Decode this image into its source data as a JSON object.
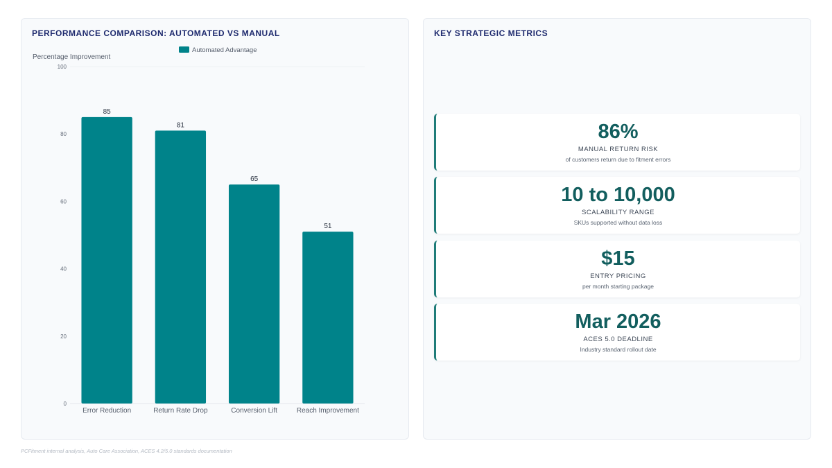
{
  "left_panel": {
    "title": "PERFORMANCE COMPARISON: AUTOMATED VS MANUAL"
  },
  "right_panel": {
    "title": "KEY STRATEGIC METRICS",
    "metrics": [
      {
        "value": "86%",
        "label": "MANUAL RETURN RISK",
        "sub": "of customers return due to fitment errors"
      },
      {
        "value": "10 to 10,000",
        "label": "SCALABILITY RANGE",
        "sub": "SKUs supported without data loss"
      },
      {
        "value": "$15",
        "label": "ENTRY PRICING",
        "sub": "per month starting package"
      },
      {
        "value": "Mar 2026",
        "label": "ACES 5.0 DEADLINE",
        "sub": "Industry standard rollout date"
      }
    ]
  },
  "source": "PCFitment internal analysis, Auto Care Association, ACES 4.2/5.0 standards documentation",
  "colors": {
    "bar": "#00838a",
    "metric_value": "#125e5e",
    "accent_border": "#1f7c79",
    "title": "#1e2a6e"
  },
  "chart_data": {
    "type": "bar",
    "title": "PERFORMANCE COMPARISON: AUTOMATED VS MANUAL",
    "categories": [
      "Error Reduction",
      "Return Rate Drop",
      "Conversion Lift",
      "Reach Improvement"
    ],
    "series": [
      {
        "name": "Automated Advantage",
        "values": [
          85,
          81,
          65,
          51
        ]
      }
    ],
    "ylabel": "Percentage Improvement",
    "xlabel": "",
    "ylim": [
      0,
      100
    ],
    "yticks": [
      0,
      20,
      40,
      60,
      80,
      100
    ],
    "data_labels": true,
    "legend": "top",
    "grid": false
  }
}
